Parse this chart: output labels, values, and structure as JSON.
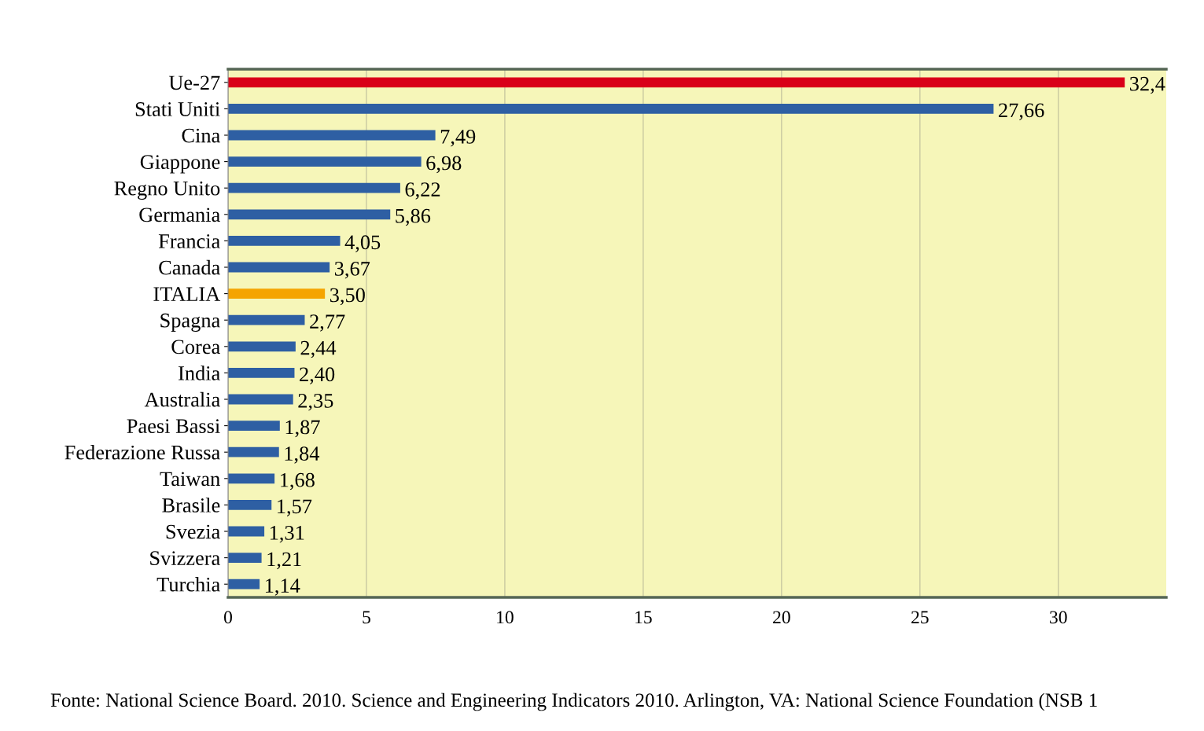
{
  "chart_data": {
    "type": "bar",
    "orientation": "horizontal",
    "categories": [
      "Ue-27",
      "Stati Uniti",
      "Cina",
      "Giappone",
      "Regno Unito",
      "Germania",
      "Francia",
      "Canada",
      "ITALIA",
      "Spagna",
      "Corea",
      "India",
      "Australia",
      "Paesi Bassi",
      "Federazione Russa",
      "Taiwan",
      "Brasile",
      "Svezia",
      "Svizzera",
      "Turchia"
    ],
    "values": [
      32.4,
      27.66,
      7.49,
      6.98,
      6.22,
      5.86,
      4.05,
      3.67,
      3.5,
      2.77,
      2.44,
      2.4,
      2.35,
      1.87,
      1.84,
      1.68,
      1.57,
      1.31,
      1.21,
      1.14
    ],
    "colors": [
      "#d90019",
      "#2e5fa3",
      "#2e5fa3",
      "#2e5fa3",
      "#2e5fa3",
      "#2e5fa3",
      "#2e5fa3",
      "#2e5fa3",
      "#f5a400",
      "#2e5fa3",
      "#2e5fa3",
      "#2e5fa3",
      "#2e5fa3",
      "#2e5fa3",
      "#2e5fa3",
      "#2e5fa3",
      "#2e5fa3",
      "#2e5fa3",
      "#2e5fa3",
      "#2e5fa3"
    ],
    "value_labels": [
      "32,4",
      "27,66",
      "7,49",
      "6,98",
      "6,22",
      "5,86",
      "4,05",
      "3,67",
      "3,50",
      "2,77",
      "2,44",
      "2,40",
      "2,35",
      "1,87",
      "1,84",
      "1,68",
      "1,57",
      "1,31",
      "1,21",
      "1,14"
    ],
    "xlim": [
      0,
      33.9
    ],
    "xticks": [
      0,
      5,
      10,
      15,
      20,
      25,
      30
    ],
    "grid": "x",
    "annotations": [
      "Fonte: National Science Board. 2010. Science and Engineering Indicators 2010. Arlington, VA: National Science Foundation (NSB 1"
    ]
  }
}
